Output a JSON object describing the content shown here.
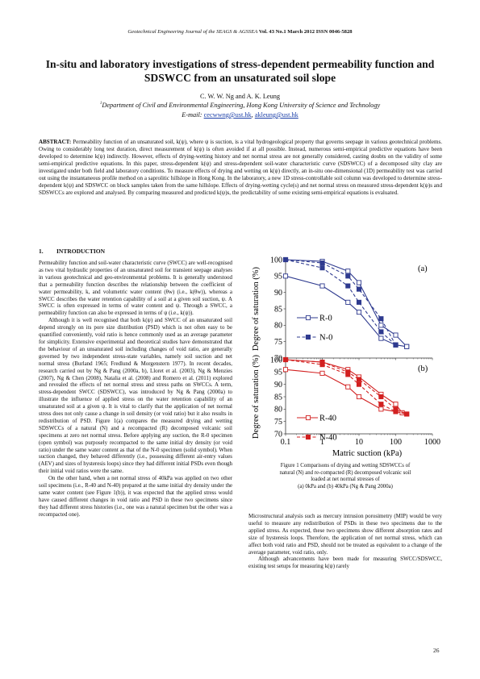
{
  "header": {
    "journal": "Geotechnical Engineering Journal of the SEAGS & AGSSEA",
    "issue": "Vol. 43 No.1 March 2012 ISSN 0046-5828"
  },
  "title": "In-situ and laboratory investigations of stress-dependent permeability function and SDSWCC from an unsaturated soil slope",
  "authors": "C. W. W. Ng and A. K. Leung",
  "affiliation": "Department of Civil and Environmental Engineering, Hong Kong University of Science and Technology",
  "affiliation_mark": "1",
  "email_label": "E-mail: ",
  "email_1": "cecwwng@ust.hk",
  "email_sep": ", ",
  "email_2": "akleung@ust.hk",
  "abstract_label": "ABSTRACT:",
  "abstract_text": "Permeability function of an unsaturated soil, k(ψ), where ψ is suction, is a vital hydrogeological property that governs seepage in various geotechnical problems. Owing to considerably long test duration, direct measurement of k(ψ) is often avoided if at all possible. Instead, numerous semi-empirical predictive equations have been developed to determine k(ψ) indirectly. However, effects of drying-wetting history and net normal stress are not generally considered, casting doubts on the validity of some semi-empirical predictive equations. In this paper, stress-dependent k(ψ) and stress-dependent soil-water characteristic curve (SDSWCC) of a decomposed silty clay are investigated under both field and laboratory conditions. To measure effects of drying and wetting on k(ψ) directly, an in-situ one-dimensional (1D) permeability test was carried out using the instantaneous profile method on a saprolitic hillslope in Hong Kong. In the laboratory, a new 1D stress-controllable soil column was developed to determine stress-dependent k(ψ) and SDSWCC on block samples taken from the same hillslope. Effects of drying-wetting cycle(s) and net normal stress on measured stress-dependent k(ψ)s and SDSWCCs are explored and analysed. By comparing measured and predicted k(ψ)s, the predictability of some existing semi-empirical equations is evaluated.",
  "section": {
    "number": "1.",
    "title": "INTRODUCTION"
  },
  "left_paragraphs": [
    "Permeability function and soil-water characteristic curve (SWCC) are well-recognised as two vital hydraulic properties of an unsaturated soil for transient seepage analyses in various geotechnical and geo-environmental problems. It is generally understood that a permeability function describes the relationship between the coefficient of water permeability, k, and volumetric water content (θw) (i.e., k(θw)), whereas a SWCC describes the water retention capability of a soil at a given soil suction, ψ. A SWCC is often expressed in terms of water content and ψ. Through a SWCC, a permeability function can also be expressed in terms of ψ (i.e., k(ψ)).",
    "Although it is well recognised that both k(ψ) and SWCC of an unsaturated soil depend strongly on its pore size distribution (PSD) which is not often easy to be quantified conveniently, void ratio is hence commonly used as an average parameter for simplicity. Extensive experimental and theoretical studies have demonstrated that the behaviour of an unsaturated soil including changes of void ratio, are generally governed by two independent stress-state variables, namely soil suction and net normal stress (Burland 1965; Fredlund & Morgenstern 1977). In recent decades, research carried out by Ng & Pang (2000a, b), Lloret et al. (2003), Ng & Menzies (2007), Ng & Chen (2008), Natalia et al. (2008) and Romero et al. (2011) explored and revealed the effects of net normal stress and stress paths on SWCCs. A term, stress-dependent SWCC (SDSWCC), was introduced by Ng & Pang (2000a) to illustrate the influence of applied stress on the water retention capability of an unsaturated soil at a given ψ. It is vital to clarify that the application of net normal stress does not only cause a change in soil density (or void ratio) but it also results in redistribution of PSD. Figure 1(a) compares the measured drying and wetting SDSWCCs of a natural (N) and a recompacted (R) decomposed volcanic soil specimens at zero net normal stress. Before applying any suction, the R-0 specimen (open symbol) was purposely recompacted to the same initial dry density (or void ratio) under the same water content as that of the N-0 specimen (solid symbol). When suction changed, they behaved differently (i.e., possessing different air-entry values (AEV) and sizes of hysteresis loops) since they had different initial PSDs even though their initial void ratios were the same.",
    "On the other hand, when a net normal stress of 40kPa was applied on two other soil specimens (i.e., R-40 and N-40) prepared at the same initial dry density under the same water content (see Figure 1(b)), it was expected that the applied stress would have caused different changes in void ratio and PSD in these two specimens since they had different stress histories (i.e., one was a natural specimen but the other was a recompacted one)."
  ],
  "right_paragraphs": [
    "Microstructural analysis such as mercury intrusion porosimetry (MIP) would be very useful to measure any redistribution of PSDs in these two specimens due to the applied stress. As expected, these two specimens show different absorption rates and size of hysteresis loops. Therefore, the application of net normal stress, which can affect both void ratio and PSD, should not be treated as equivalent to a change of the average parameter, void ratio, only.",
    "Although advancements have been made for measuring SWCC/SDSWCC, existing test setups for measuring k(ψ) rarely"
  ],
  "caption_lines": [
    "Figure 1 Comparisons of drying and wetting SDSWCCs of",
    "natural (N) and re-compacted (R) decomposed volcanic soil",
    "loaded at net normal stresses of",
    "(a) 0kPa and (b) 40kPa (Ng & Pang 2000a)"
  ],
  "page_number": "26",
  "chart_data": [
    {
      "type": "scatter",
      "panel_label": "(a)",
      "ylabel": "Degree of saturation (%)",
      "xlabel": "",
      "xscale": "log",
      "xlim": [
        0.1,
        1000
      ],
      "ylim": [
        70,
        100
      ],
      "yticks": [
        70,
        75,
        80,
        85,
        90,
        95,
        100
      ],
      "legend_placement": "middle-left",
      "series": [
        {
          "name": "R-0",
          "marker": "open-square",
          "color": "#2f3b8f",
          "line": "solid",
          "x": [
            0.1,
            1,
            5,
            10,
            40,
            100,
            200
          ],
          "y": [
            95,
            92,
            87,
            84,
            76,
            74,
            73.5
          ]
        },
        {
          "name": "",
          "marker": "open-square",
          "color": "#2f3b8f",
          "line": "solid",
          "x": [
            0.1,
            1,
            5,
            10,
            40,
            100,
            200
          ],
          "y": [
            100,
            99.5,
            96.5,
            93,
            80,
            77,
            73.5
          ]
        },
        {
          "name": "N-0",
          "marker": "filled-square",
          "color": "#2f3b8f",
          "line": "dashed",
          "x": [
            0.1,
            1,
            5,
            10,
            40,
            100
          ],
          "y": [
            100,
            97.5,
            92,
            87,
            78,
            74
          ]
        },
        {
          "name": "",
          "marker": "filled-square",
          "color": "#2f3b8f",
          "line": "dashed",
          "x": [
            0.1,
            1,
            5,
            10,
            40,
            100
          ],
          "y": [
            100,
            99,
            95,
            91,
            82,
            74
          ]
        }
      ]
    },
    {
      "type": "scatter",
      "panel_label": "(b)",
      "ylabel": "Degree of saturation (%)",
      "xlabel": "Matric suction (kPa)",
      "xscale": "log",
      "xlim": [
        0.1,
        1000
      ],
      "ylim": [
        70,
        100
      ],
      "yticks": [
        70,
        75,
        80,
        85,
        90,
        95,
        100
      ],
      "xticks": [
        "0.1",
        "1",
        "10",
        "100",
        "1000"
      ],
      "legend_placement": "middle-left",
      "series": [
        {
          "name": "R-40",
          "marker": "open-square",
          "color": "#d22020",
          "line": "solid",
          "x": [
            0.1,
            1,
            5,
            10,
            40,
            100,
            150
          ],
          "y": [
            96,
            94.5,
            89,
            85,
            80,
            79,
            78.5
          ]
        },
        {
          "name": "",
          "marker": "open-square",
          "color": "#d22020",
          "line": "solid",
          "x": [
            0.1,
            1,
            5,
            10,
            40,
            100,
            150
          ],
          "y": [
            100,
            99,
            96,
            93,
            86,
            82,
            78.5
          ]
        },
        {
          "name": "N-40",
          "marker": "filled-square",
          "color": "#d22020",
          "line": "dashed",
          "x": [
            0.1,
            1,
            5,
            10,
            40,
            100,
            200
          ],
          "y": [
            100,
            98,
            94,
            90,
            82,
            79,
            78
          ]
        },
        {
          "name": "",
          "marker": "filled-square",
          "color": "#d22020",
          "line": "dashed",
          "x": [
            0.1,
            1,
            5,
            10,
            40,
            100,
            200
          ],
          "y": [
            100,
            99,
            95,
            92,
            85,
            80,
            78
          ]
        }
      ]
    }
  ]
}
